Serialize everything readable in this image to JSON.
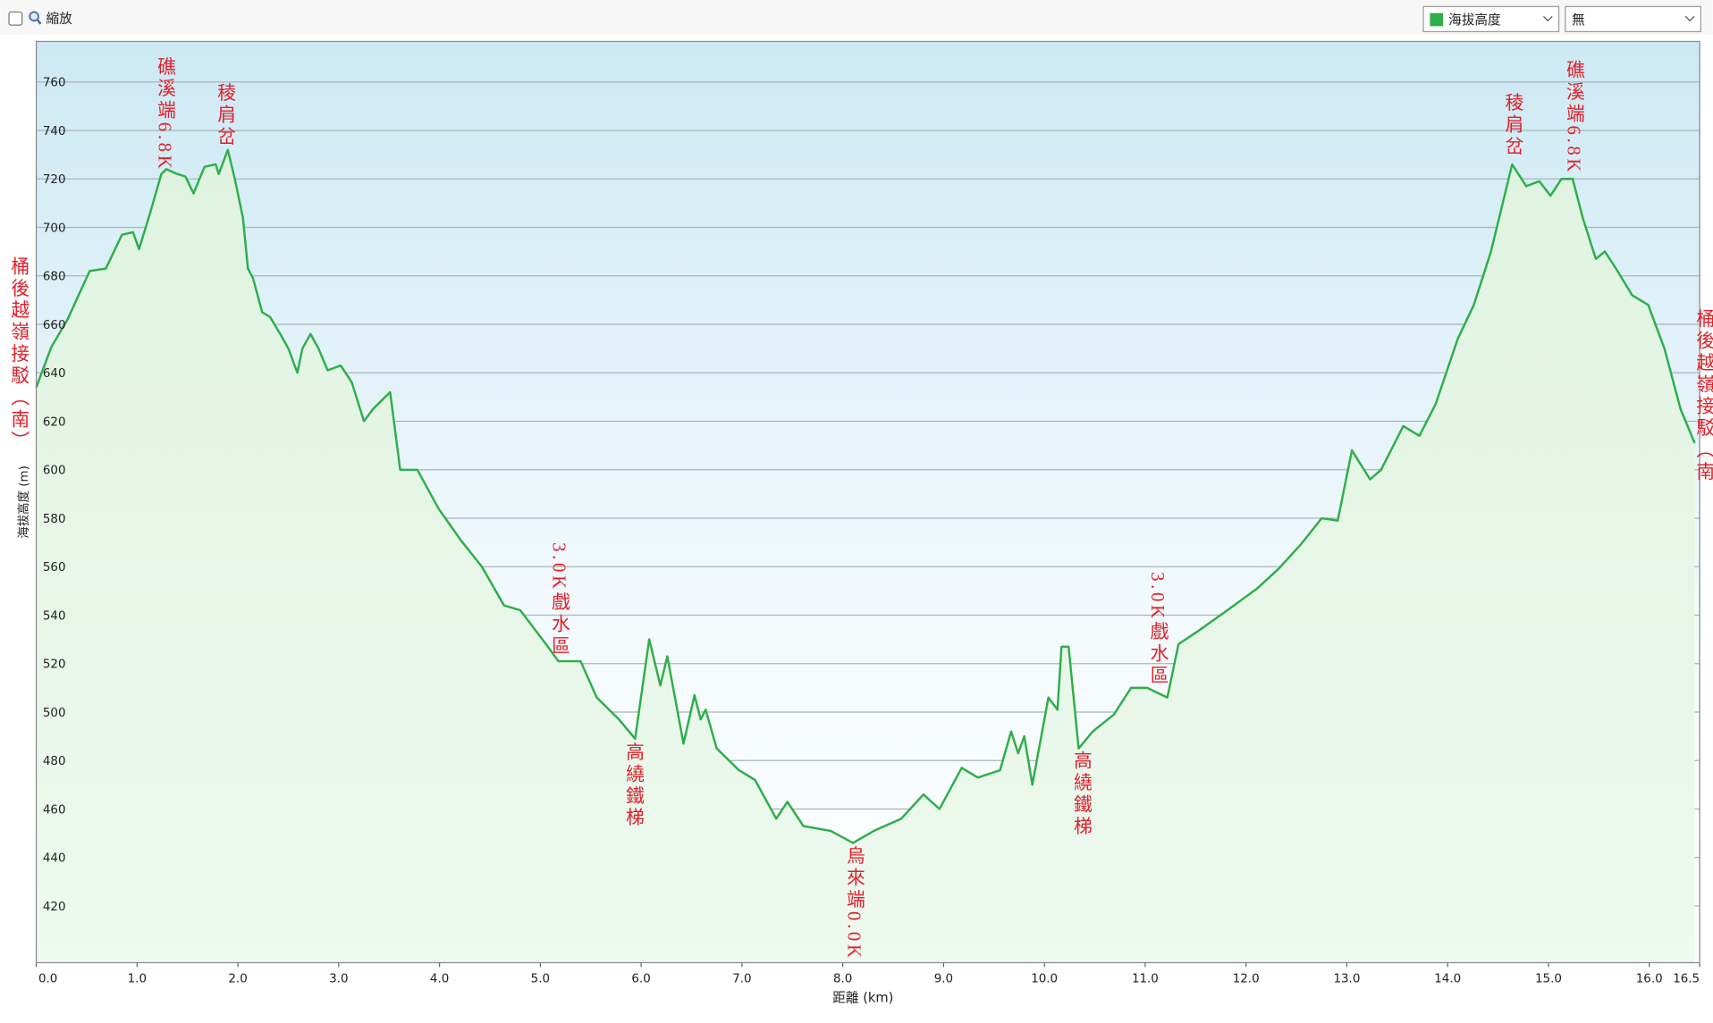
{
  "toolbar": {
    "zoom_label": "縮放",
    "compare_select": "無"
  },
  "chart_data": {
    "type": "area",
    "x_label": "距離 (km)",
    "y_label": "海拔高度 (m)",
    "x": [
      0,
      0.15,
      0.31,
      0.53,
      0.69,
      0.85,
      0.96,
      1.02,
      1.13,
      1.24,
      1.29,
      1.4,
      1.48,
      1.56,
      1.67,
      1.78,
      1.81,
      1.9,
      1.97,
      2.05,
      2.1,
      2.15,
      2.24,
      2.32,
      2.42,
      2.5,
      2.59,
      2.64,
      2.72,
      2.8,
      2.89,
      3.02,
      3.13,
      3.25,
      3.34,
      3.51,
      3.61,
      3.78,
      3.99,
      4.21,
      4.42,
      4.64,
      4.8,
      5.02,
      5.18,
      5.4,
      5.56,
      5.78,
      5.94,
      6.08,
      6.19,
      6.26,
      6.42,
      6.53,
      6.59,
      6.64,
      6.75,
      6.97,
      7.13,
      7.34,
      7.45,
      7.61,
      7.88,
      8.1,
      8.31,
      8.58,
      8.8,
      8.96,
      9.18,
      9.34,
      9.56,
      9.67,
      9.74,
      9.8,
      9.88,
      10.04,
      10.13,
      10.17,
      10.24,
      10.34,
      10.48,
      10.69,
      10.86,
      11.02,
      11.22,
      11.33,
      11.51,
      11.78,
      12.11,
      12.32,
      12.54,
      12.75,
      12.91,
      13.05,
      13.23,
      13.34,
      13.56,
      13.72,
      13.88,
      14.1,
      14.26,
      14.43,
      14.64,
      14.78,
      14.91,
      15.02,
      15.13,
      15.24,
      15.34,
      15.47,
      15.56,
      15.67,
      15.83,
      15.99,
      16.15,
      16.31,
      16.45
    ],
    "series": [
      {
        "name": "海拔高度",
        "color": "#2eae4a",
        "values": [
          634,
          650.6,
          662,
          682,
          683,
          697,
          698,
          691,
          706,
          722,
          724,
          722,
          721,
          714,
          725,
          726,
          722,
          732,
          720,
          704,
          683,
          679,
          665,
          663,
          656,
          650,
          640,
          650,
          656,
          650,
          641,
          643,
          636,
          620,
          625,
          632,
          600,
          600,
          584,
          571,
          560,
          544,
          542,
          530,
          521,
          521,
          506,
          497,
          489,
          530,
          511,
          523,
          487,
          507,
          497,
          501,
          485,
          476,
          472,
          456,
          463,
          453,
          451,
          446,
          451,
          456,
          466,
          460,
          477,
          473,
          476,
          492,
          483,
          490,
          470,
          506,
          501,
          527,
          527,
          485,
          492,
          499,
          510,
          510,
          506,
          528,
          533,
          541,
          551,
          559,
          569,
          580,
          579,
          608,
          596,
          600,
          618,
          614,
          627,
          654,
          668,
          690,
          726,
          717,
          719,
          713,
          720,
          720,
          704,
          687,
          690,
          683,
          672,
          668,
          650,
          625,
          611
        ]
      }
    ],
    "xlim": [
      0,
      16.5
    ],
    "ylim": [
      396.6,
      776.7
    ],
    "xticks": [
      {
        "value": 0,
        "label": "0.0"
      },
      {
        "value": 1,
        "label": "1.0"
      },
      {
        "value": 2,
        "label": "2.0"
      },
      {
        "value": 3,
        "label": "3.0"
      },
      {
        "value": 4,
        "label": "4.0"
      },
      {
        "value": 5,
        "label": "5.0"
      },
      {
        "value": 6,
        "label": "6.0"
      },
      {
        "value": 7,
        "label": "7.0"
      },
      {
        "value": 8,
        "label": "8.0"
      },
      {
        "value": 9,
        "label": "9.0"
      },
      {
        "value": 10,
        "label": "10.0"
      },
      {
        "value": 11,
        "label": "11.0"
      },
      {
        "value": 12,
        "label": "12.0"
      },
      {
        "value": 13,
        "label": "13.0"
      },
      {
        "value": 14,
        "label": "14.0"
      },
      {
        "value": 15,
        "label": "15.0"
      },
      {
        "value": 16,
        "label": "16.0"
      },
      16.5
    ],
    "yticks": [
      420,
      440,
      460,
      480,
      500,
      520,
      540,
      560,
      580,
      600,
      620,
      640,
      660,
      680,
      700,
      720,
      740,
      760
    ],
    "grid": true,
    "annotations": [
      "桶後越嶺接駁（南）",
      "礁溪端6.8K",
      "稜肩岔",
      "3.0K戲水區",
      "高繞鐵梯",
      "烏來端0.0K",
      "高繞鐵梯",
      "3.0K戲水區",
      "稜肩岔",
      "礁溪端6.8K",
      "桶後越嶺接駁（南"
    ]
  }
}
